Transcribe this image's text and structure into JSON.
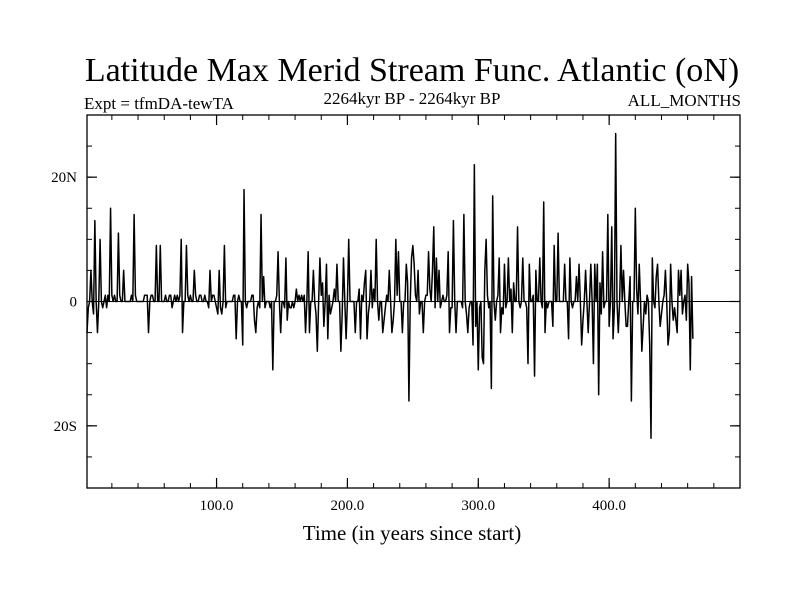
{
  "chart_data": {
    "type": "line",
    "title": "Latitude Max Merid Stream Func. Atlantic (oN)",
    "subtitle_left": "Expt = tfmDA-tewTA",
    "subtitle_center": "2264kyr BP - 2264kyr BP",
    "subtitle_right": "ALL_MONTHS",
    "xlabel": "Time (in years since start)",
    "ylabel": "",
    "xlim": [
      1,
      500
    ],
    "ylim": [
      -30,
      30
    ],
    "x_ticks": [
      {
        "value": 100,
        "label": "100.0"
      },
      {
        "value": 200,
        "label": "200.0"
      },
      {
        "value": 300,
        "label": "300.0"
      },
      {
        "value": 400,
        "label": "400.0"
      }
    ],
    "y_ticks": [
      {
        "value": 20,
        "label": "20N"
      },
      {
        "value": 0,
        "label": "0"
      },
      {
        "value": -20,
        "label": "20S"
      }
    ],
    "x_minor_step": 20,
    "y_minor_step": 5,
    "grid": false,
    "series": [
      {
        "color": "#000000",
        "x_start": 1,
        "x_step": 1,
        "values": [
          -5,
          -1,
          0,
          5,
          0,
          -2,
          13,
          0,
          -5,
          0,
          10,
          0,
          -1,
          0,
          1,
          -1,
          1,
          0,
          15,
          1,
          0,
          1,
          0,
          0,
          11,
          1,
          0,
          0,
          5,
          0,
          0,
          0,
          0,
          0,
          1,
          0,
          14,
          1,
          0,
          0,
          0,
          0,
          0,
          0,
          1,
          1,
          1,
          -5,
          0,
          1,
          1,
          0,
          0,
          9,
          0,
          0,
          9,
          0,
          0,
          0,
          1,
          0,
          0,
          1,
          1,
          -1,
          0,
          1,
          0,
          1,
          0,
          1,
          10,
          -5,
          0,
          0,
          9,
          1,
          0,
          1,
          0,
          0,
          5,
          1,
          0,
          0,
          1,
          1,
          0,
          0,
          1,
          0,
          0,
          -1,
          5,
          0,
          1,
          1,
          0,
          -1,
          -2,
          5,
          -1,
          -2,
          0,
          9,
          -1,
          0,
          0,
          0,
          0,
          0,
          1,
          1,
          -6,
          0,
          1,
          0,
          0,
          -7,
          18,
          0,
          -1,
          0,
          0,
          0,
          1,
          1,
          -3,
          -5,
          -1,
          0,
          -1,
          14,
          0,
          4,
          -1,
          0,
          0,
          0,
          -1,
          0,
          -11,
          0,
          0,
          1,
          8,
          0,
          -5,
          0,
          0,
          -1,
          7,
          -3,
          0,
          -1,
          -1,
          0,
          -1,
          0,
          2,
          0,
          1,
          0,
          1,
          0,
          1,
          -5,
          0,
          8,
          -5,
          0,
          0,
          5,
          0,
          -2,
          -8,
          0,
          7,
          1,
          3,
          -4,
          0,
          6,
          -6,
          1,
          -2,
          -1,
          0,
          2,
          0,
          6,
          0,
          0,
          -8,
          -2,
          7,
          0,
          -6,
          0,
          10,
          0,
          0,
          0,
          0,
          -5,
          0,
          0,
          2,
          -6,
          1,
          0,
          3,
          5,
          -6,
          -2,
          0,
          5,
          -1,
          2,
          0,
          10,
          0,
          -3,
          0,
          0,
          -5,
          -3,
          -1,
          1,
          0,
          5,
          0,
          -5,
          -3,
          0,
          10,
          1,
          8,
          0,
          0,
          -5,
          0,
          0,
          6,
          3,
          -16,
          0,
          7,
          9,
          6,
          1,
          0,
          5,
          -2,
          0,
          0,
          -5,
          0,
          1,
          1,
          8,
          2,
          0,
          5,
          12,
          -1,
          7,
          0,
          5,
          -1,
          0,
          1,
          0,
          0,
          1,
          8,
          -5,
          -1,
          -1,
          13,
          0,
          -5,
          0,
          0,
          0,
          0,
          -1,
          14,
          0,
          -2,
          -5,
          -1,
          0,
          0,
          -7,
          22,
          -4,
          0,
          -11,
          -1,
          0,
          -9,
          -10,
          5,
          10,
          1,
          -1,
          0,
          -14,
          17,
          0,
          -3,
          0,
          1,
          7,
          -5,
          -1,
          -2,
          6,
          -1,
          0,
          7,
          0,
          2,
          -5,
          3,
          0,
          0,
          12,
          0,
          -1,
          0,
          7,
          0,
          0,
          -1,
          -10,
          6,
          0,
          0,
          1,
          -12,
          5,
          0,
          0,
          7,
          0,
          -1,
          16,
          -5,
          0,
          -1,
          0,
          0,
          0,
          -4,
          9,
          0,
          0,
          11,
          0,
          0,
          0,
          0,
          6,
          0,
          0,
          -6,
          7,
          0,
          -1,
          0,
          0,
          4,
          0,
          6,
          0,
          -7,
          -3,
          0,
          5,
          0,
          -5,
          0,
          6,
          0,
          -10,
          6,
          0,
          6,
          -15,
          3,
          -2,
          8,
          -1,
          0,
          0,
          14,
          -4,
          0,
          12,
          -6,
          -1,
          27,
          0,
          -5,
          0,
          9,
          0,
          5,
          0,
          -4,
          -4,
          0,
          4,
          -16,
          0,
          0,
          15,
          2,
          -2,
          6,
          0,
          -8,
          -4,
          0,
          -2,
          1,
          0,
          -7,
          -22,
          7,
          0,
          -1,
          4,
          6,
          0,
          -4,
          -2,
          0,
          1,
          5,
          0,
          -7,
          -5,
          6,
          0,
          -3,
          -1,
          -3,
          -5,
          5,
          1,
          5,
          -2,
          0,
          1,
          -3,
          6,
          3,
          -11,
          4,
          -6
        ]
      }
    ]
  }
}
